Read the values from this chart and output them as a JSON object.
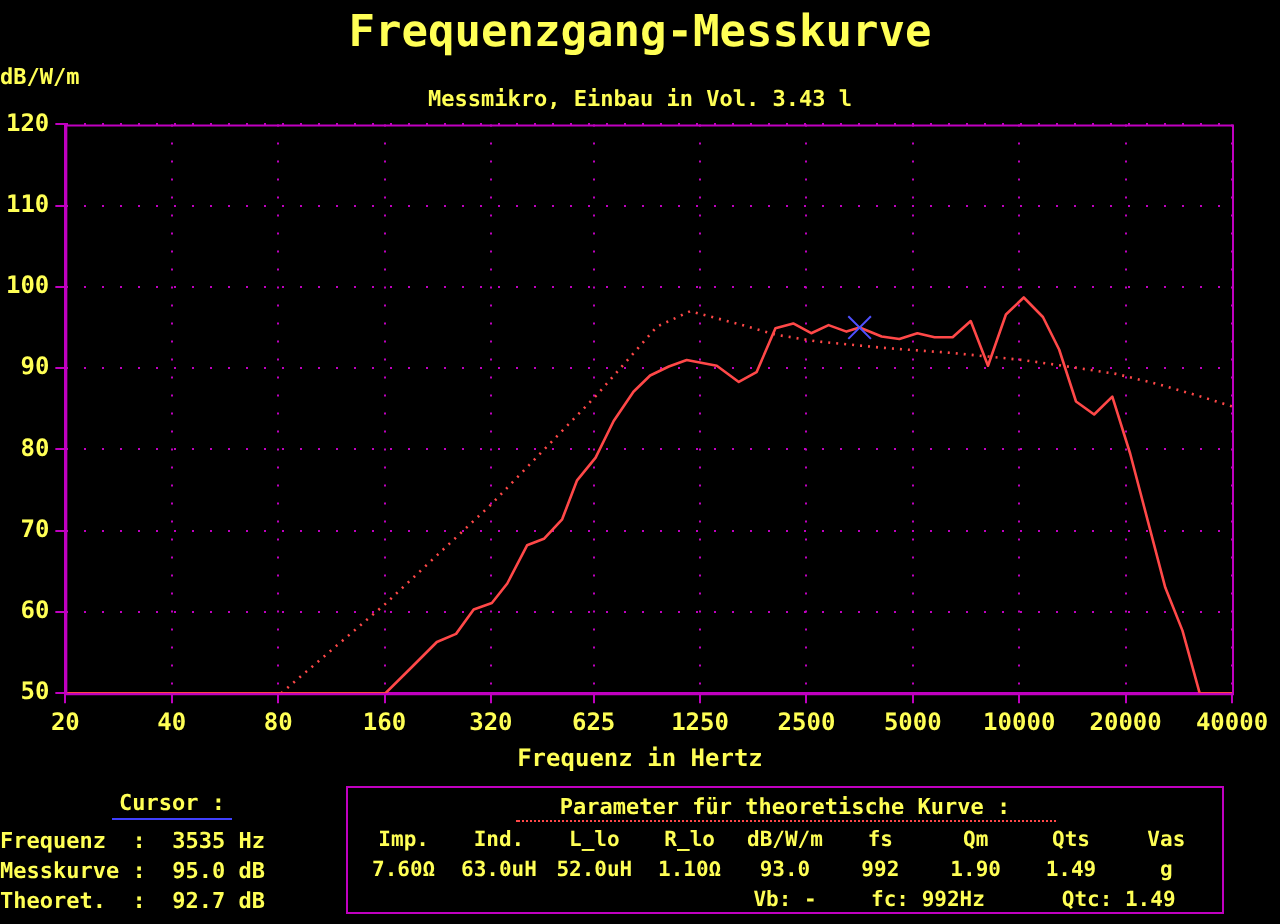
{
  "chart_data": {
    "type": "line",
    "title": "Frequenzgang-Messkurve",
    "subtitle": "Messmikro, Einbau in Vol. 3.43 l",
    "xlabel": "Frequenz in Hertz",
    "ylabel": "dB/W/m",
    "log": "x",
    "grid": true,
    "legend": false,
    "xlim": [
      20,
      40000
    ],
    "xticks": [
      20,
      40,
      80,
      160,
      320,
      625,
      1250,
      2500,
      5000,
      10000,
      20000,
      40000
    ],
    "ylim": [
      50,
      120
    ],
    "yticks": [
      50,
      60,
      70,
      80,
      90,
      100,
      110,
      120
    ],
    "series": [
      {
        "color": "#ff4848",
        "line_style": "solid",
        "marker": "none",
        "x": [
          20,
          161,
          190,
          225,
          255,
          286,
          322,
          356,
          405,
          452,
          509,
          561,
          633,
          712,
          810,
          903,
          1020,
          1146,
          1394,
          1609,
          1806,
          2043,
          2294,
          2579,
          2888,
          3245,
          3535,
          4080,
          4580,
          5150,
          5760,
          6480,
          7290,
          8160,
          9170,
          10300,
          11670,
          12970,
          14480,
          16290,
          18340,
          20600,
          25900,
          28970,
          32400,
          40000
        ],
        "values": [
          50,
          50,
          53.1,
          56.3,
          57.3,
          60.3,
          61.1,
          63.5,
          68.2,
          69.0,
          71.4,
          76.2,
          79.0,
          83.5,
          87.1,
          89.1,
          90.2,
          91.0,
          90.3,
          88.3,
          89.5,
          94.9,
          95.5,
          94.3,
          95.3,
          94.5,
          95.0,
          93.9,
          93.6,
          94.3,
          93.8,
          93.8,
          95.8,
          90.3,
          96.6,
          98.7,
          96.3,
          92.3,
          85.9,
          84.3,
          86.5,
          79.5,
          63.0,
          57.7,
          50,
          50
        ]
      },
      {
        "color": "#ff4848",
        "line_style": "dotted",
        "marker": "none",
        "x": [
          81.6,
          160,
          320,
          638,
          943,
          1171,
          1586,
          2057,
          2670,
          4120,
          6350,
          7890,
          10240,
          13280,
          18780,
          24360,
          31600,
          40000
        ],
        "values": [
          50,
          60.9,
          73.2,
          86.7,
          95.1,
          97.0,
          95.5,
          94.1,
          93.3,
          92.5,
          91.9,
          91.5,
          91.0,
          90.3,
          89.3,
          88.1,
          86.7,
          85.3
        ]
      },
      {
        "type": "scatter",
        "color": "#5050ff",
        "marker": "cross",
        "x": [
          3535
        ],
        "values": [
          95.0
        ]
      }
    ],
    "annotations": [
      "Cursor :",
      "Frequenz  :  3535 Hz",
      "Messkurve :  95.0 dB",
      "Theoret.  :  92.7 dB",
      "Parameter für theoretische Kurve :",
      "Imp.",
      "Ind.",
      "L_lo",
      "R_lo",
      "dB/W/m",
      "fs",
      "Qm",
      "Qts",
      "Vas",
      "7.60Ω",
      "63.0uH",
      "52.0uH",
      "1.10Ω",
      "93.0",
      "992",
      "1.90",
      "1.49",
      "g",
      "Vb: -",
      "fc: 992Hz",
      "Qtc: 1.49"
    ]
  }
}
